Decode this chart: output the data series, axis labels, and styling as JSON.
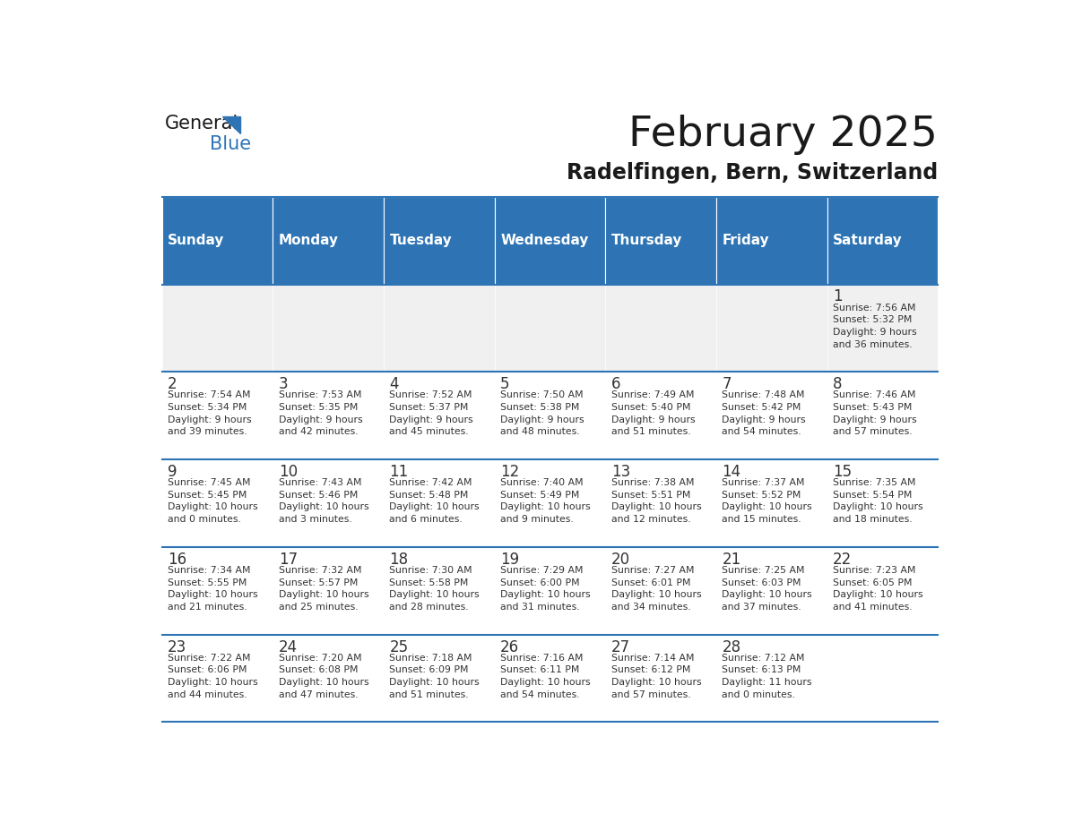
{
  "title": "February 2025",
  "subtitle": "Radelfingen, Bern, Switzerland",
  "header_bg": "#2E74B5",
  "header_text": "#FFFFFF",
  "cell_bg_light": "#FFFFFF",
  "cell_bg_dark": "#F0F0F0",
  "day_number_color": "#333333",
  "text_color": "#333333",
  "line_color": "#2E74B5",
  "weekdays": [
    "Sunday",
    "Monday",
    "Tuesday",
    "Wednesday",
    "Thursday",
    "Friday",
    "Saturday"
  ],
  "calendar_data": [
    [
      null,
      null,
      null,
      null,
      null,
      null,
      {
        "day": 1,
        "sunrise": "7:56 AM",
        "sunset": "5:32 PM",
        "daylight": "9 hours\nand 36 minutes."
      }
    ],
    [
      {
        "day": 2,
        "sunrise": "7:54 AM",
        "sunset": "5:34 PM",
        "daylight": "9 hours\nand 39 minutes."
      },
      {
        "day": 3,
        "sunrise": "7:53 AM",
        "sunset": "5:35 PM",
        "daylight": "9 hours\nand 42 minutes."
      },
      {
        "day": 4,
        "sunrise": "7:52 AM",
        "sunset": "5:37 PM",
        "daylight": "9 hours\nand 45 minutes."
      },
      {
        "day": 5,
        "sunrise": "7:50 AM",
        "sunset": "5:38 PM",
        "daylight": "9 hours\nand 48 minutes."
      },
      {
        "day": 6,
        "sunrise": "7:49 AM",
        "sunset": "5:40 PM",
        "daylight": "9 hours\nand 51 minutes."
      },
      {
        "day": 7,
        "sunrise": "7:48 AM",
        "sunset": "5:42 PM",
        "daylight": "9 hours\nand 54 minutes."
      },
      {
        "day": 8,
        "sunrise": "7:46 AM",
        "sunset": "5:43 PM",
        "daylight": "9 hours\nand 57 minutes."
      }
    ],
    [
      {
        "day": 9,
        "sunrise": "7:45 AM",
        "sunset": "5:45 PM",
        "daylight": "10 hours\nand 0 minutes."
      },
      {
        "day": 10,
        "sunrise": "7:43 AM",
        "sunset": "5:46 PM",
        "daylight": "10 hours\nand 3 minutes."
      },
      {
        "day": 11,
        "sunrise": "7:42 AM",
        "sunset": "5:48 PM",
        "daylight": "10 hours\nand 6 minutes."
      },
      {
        "day": 12,
        "sunrise": "7:40 AM",
        "sunset": "5:49 PM",
        "daylight": "10 hours\nand 9 minutes."
      },
      {
        "day": 13,
        "sunrise": "7:38 AM",
        "sunset": "5:51 PM",
        "daylight": "10 hours\nand 12 minutes."
      },
      {
        "day": 14,
        "sunrise": "7:37 AM",
        "sunset": "5:52 PM",
        "daylight": "10 hours\nand 15 minutes."
      },
      {
        "day": 15,
        "sunrise": "7:35 AM",
        "sunset": "5:54 PM",
        "daylight": "10 hours\nand 18 minutes."
      }
    ],
    [
      {
        "day": 16,
        "sunrise": "7:34 AM",
        "sunset": "5:55 PM",
        "daylight": "10 hours\nand 21 minutes."
      },
      {
        "day": 17,
        "sunrise": "7:32 AM",
        "sunset": "5:57 PM",
        "daylight": "10 hours\nand 25 minutes."
      },
      {
        "day": 18,
        "sunrise": "7:30 AM",
        "sunset": "5:58 PM",
        "daylight": "10 hours\nand 28 minutes."
      },
      {
        "day": 19,
        "sunrise": "7:29 AM",
        "sunset": "6:00 PM",
        "daylight": "10 hours\nand 31 minutes."
      },
      {
        "day": 20,
        "sunrise": "7:27 AM",
        "sunset": "6:01 PM",
        "daylight": "10 hours\nand 34 minutes."
      },
      {
        "day": 21,
        "sunrise": "7:25 AM",
        "sunset": "6:03 PM",
        "daylight": "10 hours\nand 37 minutes."
      },
      {
        "day": 22,
        "sunrise": "7:23 AM",
        "sunset": "6:05 PM",
        "daylight": "10 hours\nand 41 minutes."
      }
    ],
    [
      {
        "day": 23,
        "sunrise": "7:22 AM",
        "sunset": "6:06 PM",
        "daylight": "10 hours\nand 44 minutes."
      },
      {
        "day": 24,
        "sunrise": "7:20 AM",
        "sunset": "6:08 PM",
        "daylight": "10 hours\nand 47 minutes."
      },
      {
        "day": 25,
        "sunrise": "7:18 AM",
        "sunset": "6:09 PM",
        "daylight": "10 hours\nand 51 minutes."
      },
      {
        "day": 26,
        "sunrise": "7:16 AM",
        "sunset": "6:11 PM",
        "daylight": "10 hours\nand 54 minutes."
      },
      {
        "day": 27,
        "sunrise": "7:14 AM",
        "sunset": "6:12 PM",
        "daylight": "10 hours\nand 57 minutes."
      },
      {
        "day": 28,
        "sunrise": "7:12 AM",
        "sunset": "6:13 PM",
        "daylight": "11 hours\nand 0 minutes."
      },
      null
    ]
  ]
}
